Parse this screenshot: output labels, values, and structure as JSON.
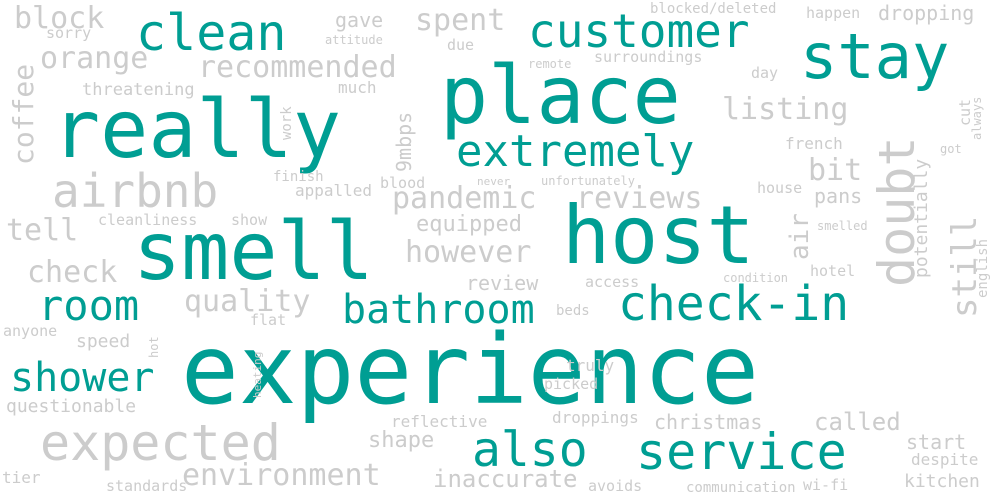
{
  "colors": {
    "accent": "#009e93",
    "muted": "#cccccc",
    "background": "#ffffff"
  },
  "words": {
    "experience": "experience",
    "host": "host",
    "place": "place",
    "really": "really",
    "smell": "smell",
    "check_in": "check-in",
    "service": "service",
    "clean": "clean",
    "customer": "customer",
    "stay": "stay",
    "extremely": "extremely",
    "room": "room",
    "bathroom": "bathroom",
    "also": "also",
    "shower": "shower",
    "doubt": "doubt",
    "airbnb": "airbnb",
    "expected": "expected",
    "environment": "environment",
    "still": "still",
    "block": "block",
    "orange": "orange",
    "recommended": "recommended",
    "spent": "spent",
    "gave": "gave",
    "sorry": "sorry",
    "attitude": "attitude",
    "due": "due",
    "blocked_deleted": "blocked/deleted",
    "happen": "happen",
    "dropping": "dropping",
    "coffee": "coffee",
    "threatening": "threatening",
    "much": "much",
    "remote": "remote",
    "surroundings": "surroundings",
    "day": "day",
    "cut": "cut",
    "always": "always",
    "listing": "listing",
    "work": "work",
    "mbps": "9mbps",
    "french": "french",
    "got": "got",
    "potentially": "potentially",
    "finish": "finish",
    "appalled": "appalled",
    "blood": "blood",
    "never": "never",
    "unfortunately": "unfortunately",
    "bit": "bit",
    "house": "house",
    "pans": "pans",
    "smelled": "smelled",
    "pandemic": "pandemic",
    "reviews": "reviews",
    "air": "air",
    "english": "english",
    "cleanliness": "cleanliness",
    "show": "show",
    "equipped": "equipped",
    "tell": "tell",
    "however": "however",
    "check": "check",
    "condition": "condition",
    "hotel": "hotel",
    "review": "review",
    "access": "access",
    "quality": "quality",
    "flat": "flat",
    "anyone": "anyone",
    "beds": "beds",
    "speed": "speed",
    "hot": "hot",
    "heating": "heating",
    "truly": "truly",
    "picked": "picked",
    "questionable": "questionable",
    "reflective": "reflective",
    "droppings": "droppings",
    "christmas": "christmas",
    "called": "called",
    "shape": "shape",
    "start": "start",
    "despite": "despite",
    "tier": "tier",
    "standards": "standards",
    "inaccurate": "inaccurate",
    "avoids": "avoids",
    "communication": "communication",
    "wifi": "wi-fi",
    "kitchen": "kitchen"
  }
}
